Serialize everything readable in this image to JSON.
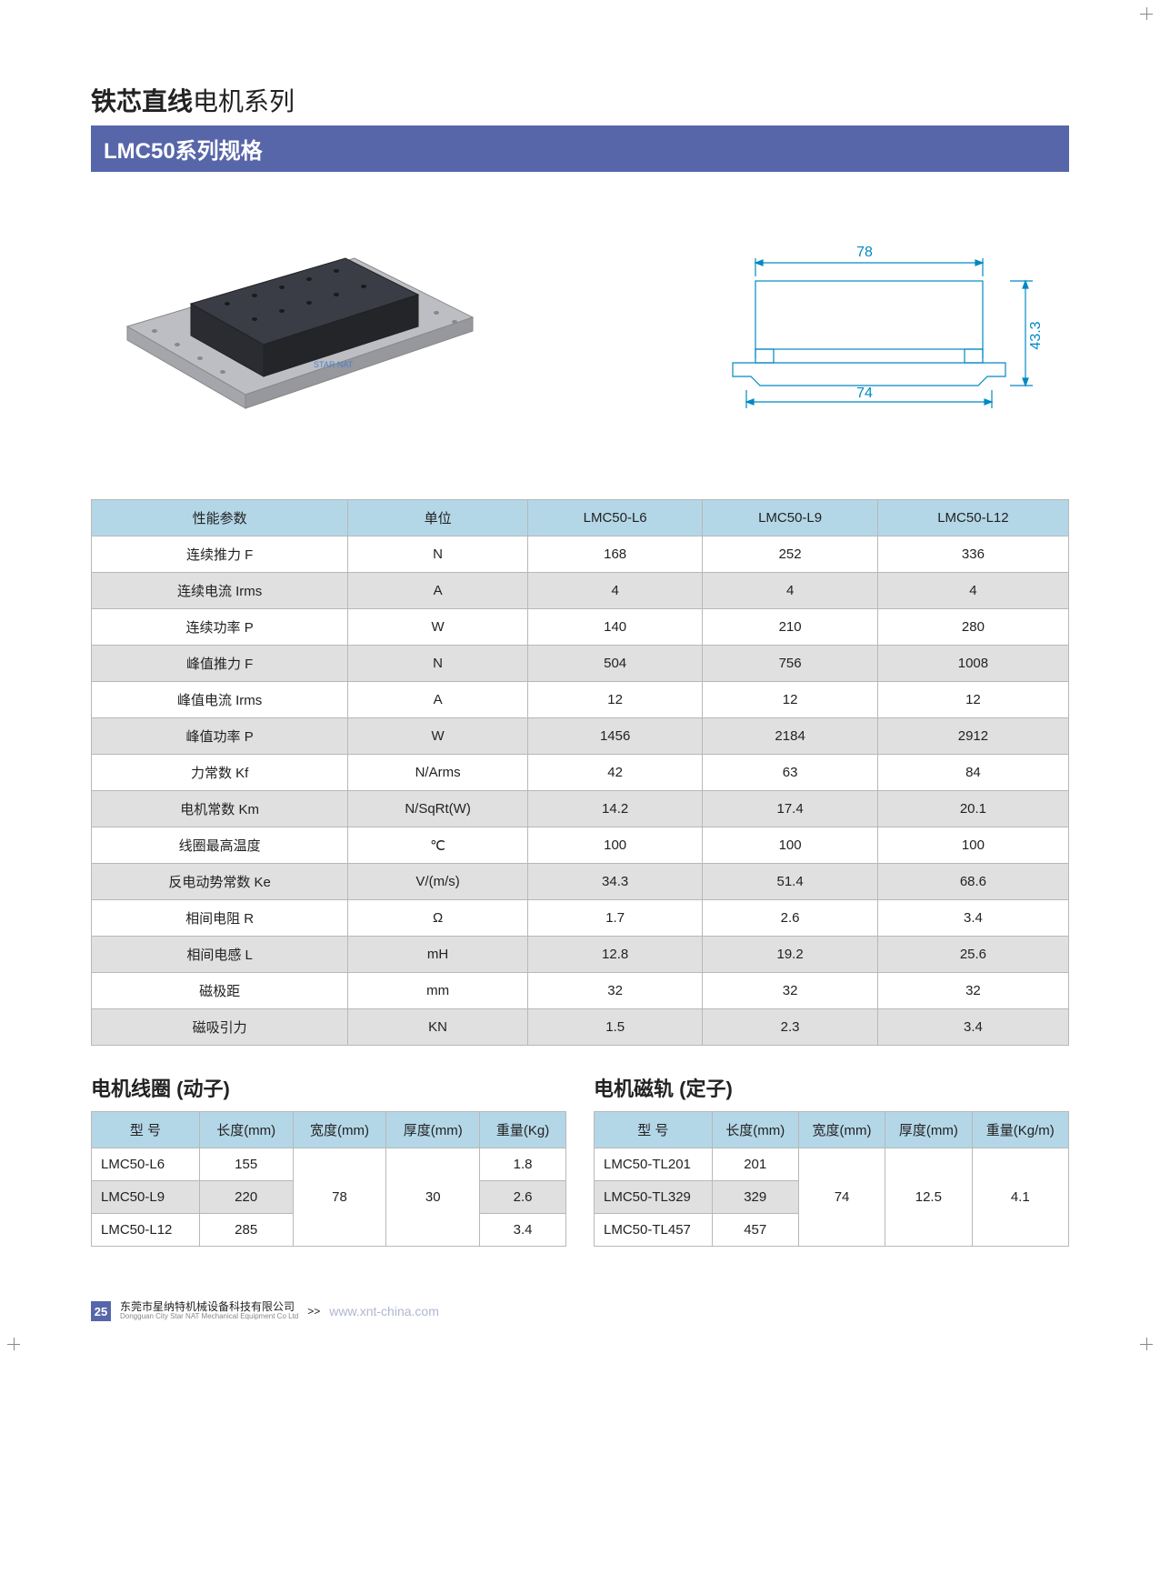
{
  "header": {
    "title_bold": "铁芯直线",
    "title_light": "电机系列",
    "subtitle": "LMC50系列规格"
  },
  "diagram": {
    "dims": {
      "width_top": "78",
      "width_bottom": "74",
      "height": "43.3"
    },
    "colors": {
      "line": "#0089c4",
      "body_dark": "#2a2c32",
      "body_light": "#a8aab0",
      "rail": "#bdbec3"
    }
  },
  "spec_table": {
    "headers": [
      "性能参数",
      "单位",
      "LMC50-L6",
      "LMC50-L9",
      "LMC50-L12"
    ],
    "rows": [
      [
        "连续推力 F",
        "N",
        "168",
        "252",
        "336"
      ],
      [
        "连续电流 Irms",
        "A",
        "4",
        "4",
        "4"
      ],
      [
        "连续功率 P",
        "W",
        "140",
        "210",
        "280"
      ],
      [
        "峰值推力 F",
        "N",
        "504",
        "756",
        "1008"
      ],
      [
        "峰值电流 Irms",
        "A",
        "12",
        "12",
        "12"
      ],
      [
        "峰值功率 P",
        "W",
        "1456",
        "2184",
        "2912"
      ],
      [
        "力常数 Kf",
        "N/Arms",
        "42",
        "63",
        "84"
      ],
      [
        "电机常数 Km",
        "N/SqRt(W)",
        "14.2",
        "17.4",
        "20.1"
      ],
      [
        "线圈最高温度",
        "℃",
        "100",
        "100",
        "100"
      ],
      [
        "反电动势常数 Ke",
        "V/(m/s)",
        "34.3",
        "51.4",
        "68.6"
      ],
      [
        "相间电阻 R",
        "Ω",
        "1.7",
        "2.6",
        "3.4"
      ],
      [
        "相间电感 L",
        "mH",
        "12.8",
        "19.2",
        "25.6"
      ],
      [
        "磁极距",
        "mm",
        "32",
        "32",
        "32"
      ],
      [
        "磁吸引力",
        "KN",
        "1.5",
        "2.3",
        "3.4"
      ]
    ]
  },
  "coil_table": {
    "title": "电机线圈 (动子)",
    "headers": [
      "型 号",
      "长度(mm)",
      "宽度(mm)",
      "厚度(mm)",
      "重量(Kg)"
    ],
    "rows": [
      [
        "LMC50-L6",
        "155",
        "",
        "",
        "1.8"
      ],
      [
        "LMC50-L9",
        "220",
        "78",
        "30",
        "2.6"
      ],
      [
        "LMC50-L12",
        "285",
        "",
        "",
        "3.4"
      ]
    ],
    "merged_width": "78",
    "merged_thick": "30"
  },
  "stator_table": {
    "title": "电机磁轨 (定子)",
    "headers": [
      "型 号",
      "长度(mm)",
      "宽度(mm)",
      "厚度(mm)",
      "重量(Kg/m)"
    ],
    "rows": [
      [
        "LMC50-TL201",
        "201"
      ],
      [
        "LMC50-TL329",
        "329"
      ],
      [
        "LMC50-TL457",
        "457"
      ]
    ],
    "merged_width": "74",
    "merged_thick": "12.5",
    "merged_weight": "4.1"
  },
  "footer": {
    "page": "25",
    "company_cn": "东莞市星纳特机械设备科技有限公司",
    "company_en": "Dongguan City Star NAT Mechanical Equipment Co Ltd",
    "chevron": ">>",
    "url": "www.xnt-china.com"
  }
}
